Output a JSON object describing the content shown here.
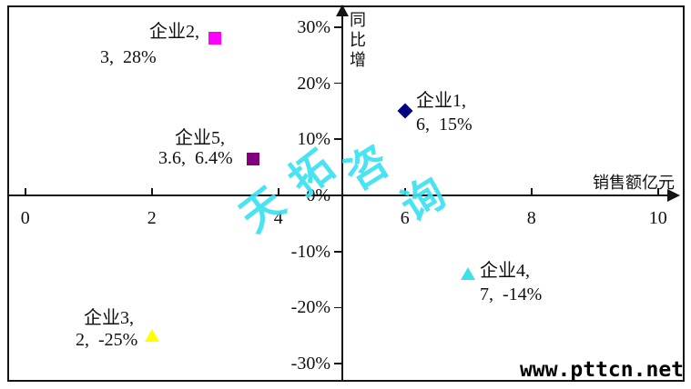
{
  "page": {
    "website": "www.pttcn.net"
  },
  "chart_data": {
    "type": "scatter",
    "title": "",
    "x_axis": {
      "title": "销售额亿元",
      "tick_values": [
        0,
        2,
        4,
        6,
        8,
        10
      ],
      "tick_labels": [
        "0",
        "2",
        "4",
        "6",
        "8",
        "10"
      ],
      "range": [
        0,
        10
      ],
      "y_axis_crosses_at_x": 5
    },
    "y_axis": {
      "title": "同比增",
      "tick_values": [
        30,
        20,
        10,
        0,
        -10,
        -20,
        -30
      ],
      "tick_labels": [
        "30%",
        "20%",
        "10%",
        "0%",
        "-10%",
        "-20%",
        "-30%"
      ],
      "range_percent": [
        -30,
        30
      ]
    },
    "series": [
      {
        "name": "企业1",
        "x": 6,
        "y_percent": 15,
        "marker": "diamond",
        "color": "#000080",
        "label_lines": [
          "企业1,",
          "6,  15%"
        ]
      },
      {
        "name": "企业2",
        "x": 3,
        "y_percent": 28,
        "marker": "square",
        "color": "#FF00FF",
        "label_lines": [
          "企业2,",
          "3,  28%"
        ]
      },
      {
        "name": "企业3",
        "x": 2,
        "y_percent": -25,
        "marker": "triangle",
        "color": "#FFFF00",
        "label_lines": [
          "企业3,",
          "2,  -25%"
        ]
      },
      {
        "name": "企业4",
        "x": 7,
        "y_percent": -14,
        "marker": "triangle",
        "color": "#40E0E8",
        "label_lines": [
          "企业4,",
          "7,  -14%"
        ]
      },
      {
        "name": "企业5",
        "x": 3.6,
        "y_percent": 6.4,
        "marker": "square",
        "color": "#800080",
        "label_lines": [
          "企业5,",
          "3.6,  6.4%"
        ]
      }
    ],
    "watermark_text": "天拓咨询",
    "watermark_color": "#3BE1F2",
    "grid": "off",
    "legend": "none"
  }
}
